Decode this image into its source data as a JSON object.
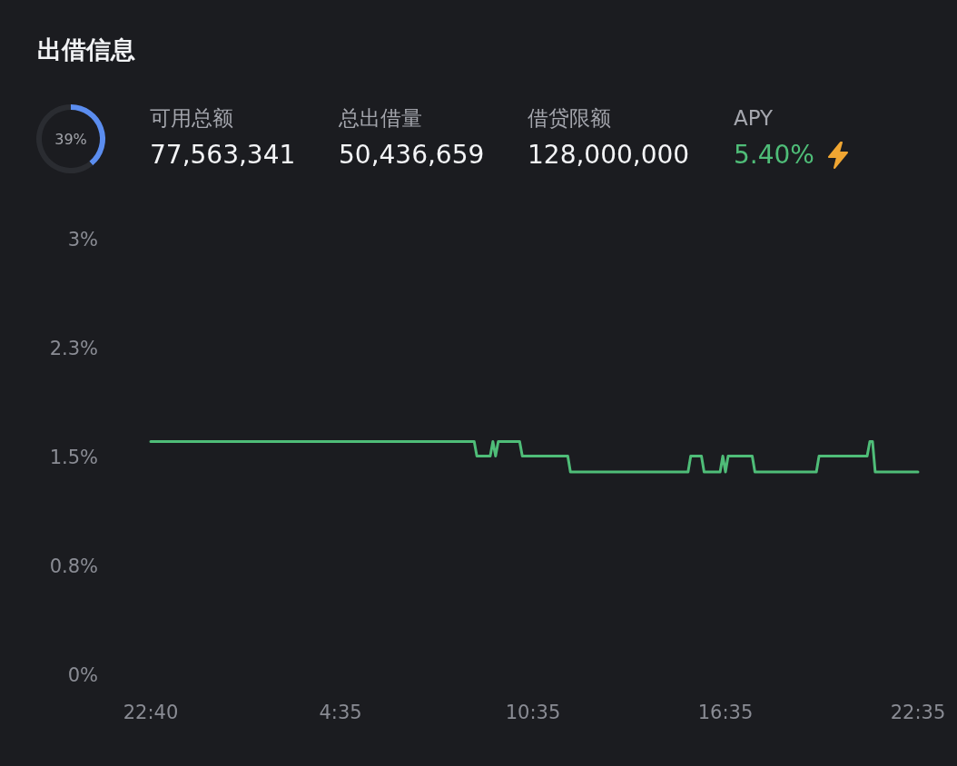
{
  "chart_data": [
    {
      "type": "donut",
      "title": "出借信息",
      "categories": [
        null,
        null
      ],
      "values": [
        39,
        61
      ],
      "colors": [
        "#5b8def",
        "#2a2c31"
      ],
      "value_labels": [
        "39%",
        null
      ]
    },
    {
      "type": "other",
      "annotations": [
        "可用总额",
        "77,563,341",
        "总出借量",
        "50,436,659",
        "借贷限额",
        "128,000,000",
        "APY",
        "5.40%"
      ]
    },
    {
      "type": "line",
      "categories": [
        "22:40",
        null,
        null,
        null,
        null,
        null,
        null,
        null,
        null,
        null,
        null,
        null,
        null,
        null,
        null,
        null,
        null,
        null,
        null,
        null,
        null,
        null,
        null,
        null,
        null,
        null,
        null,
        null,
        null,
        null,
        null,
        null,
        null,
        null,
        null,
        null,
        null,
        null,
        null,
        null,
        null,
        null,
        null,
        null,
        null,
        null,
        null,
        null,
        null,
        null,
        null,
        null,
        null,
        null,
        null,
        null,
        null,
        null,
        null,
        null,
        null,
        null,
        null,
        null,
        null,
        null,
        null,
        null,
        null,
        null,
        null,
        "4:35",
        null,
        null,
        null,
        null,
        null,
        null,
        null,
        null,
        null,
        null,
        null,
        null,
        null,
        null,
        null,
        null,
        null,
        null,
        null,
        null,
        null,
        null,
        null,
        null,
        null,
        null,
        null,
        null,
        null,
        null,
        null,
        null,
        null,
        null,
        null,
        null,
        null,
        null,
        null,
        null,
        null,
        null,
        null,
        null,
        null,
        null,
        null,
        null,
        null,
        null,
        null,
        null,
        null,
        null,
        null,
        null,
        null,
        null,
        null,
        null,
        null,
        null,
        null,
        null,
        null,
        null,
        null,
        null,
        null,
        null,
        null,
        "10:35",
        null,
        null,
        null,
        null,
        null,
        null,
        null,
        null,
        null,
        null,
        null,
        null,
        null,
        null,
        null,
        null,
        null,
        null,
        null,
        null,
        null,
        null,
        null,
        null,
        null,
        null,
        null,
        null,
        null,
        null,
        null,
        null,
        null,
        null,
        null,
        null,
        null,
        null,
        null,
        null,
        null,
        null,
        null,
        null,
        null,
        null,
        null,
        null,
        null,
        null,
        null,
        null,
        null,
        null,
        null,
        null,
        null,
        null,
        null,
        null,
        null,
        null,
        null,
        null,
        null,
        null,
        null,
        null,
        null,
        null,
        null,
        "16:35",
        null,
        null,
        null,
        null,
        null,
        null,
        null,
        null,
        null,
        null,
        null,
        null,
        null,
        null,
        null,
        null,
        null,
        null,
        null,
        null,
        null,
        null,
        null,
        null,
        null,
        null,
        null,
        null,
        null,
        null,
        null,
        null,
        null,
        null,
        null,
        null,
        null,
        null,
        null,
        null,
        null,
        null,
        null,
        null,
        null,
        null,
        null,
        null,
        null,
        null,
        null,
        null,
        null,
        null,
        null,
        null,
        null,
        null,
        null,
        null,
        null,
        null,
        null,
        null,
        null,
        null,
        null,
        null,
        null,
        null,
        null,
        "22:35"
      ],
      "values": [
        1.61,
        1.61,
        1.61,
        1.61,
        1.61,
        1.61,
        1.61,
        1.61,
        1.61,
        1.61,
        1.61,
        1.61,
        1.61,
        1.61,
        1.61,
        1.61,
        1.61,
        1.61,
        1.61,
        1.61,
        1.61,
        1.61,
        1.61,
        1.61,
        1.61,
        1.61,
        1.61,
        1.61,
        1.61,
        1.61,
        1.61,
        1.61,
        1.61,
        1.61,
        1.61,
        1.61,
        1.61,
        1.61,
        1.61,
        1.61,
        1.61,
        1.61,
        1.61,
        1.61,
        1.61,
        1.61,
        1.61,
        1.61,
        1.61,
        1.61,
        1.61,
        1.61,
        1.61,
        1.61,
        1.61,
        1.61,
        1.61,
        1.61,
        1.61,
        1.61,
        1.61,
        1.61,
        1.61,
        1.61,
        1.61,
        1.61,
        1.61,
        1.61,
        1.61,
        1.61,
        1.61,
        1.61,
        1.61,
        1.61,
        1.61,
        1.61,
        1.61,
        1.61,
        1.61,
        1.61,
        1.61,
        1.61,
        1.61,
        1.61,
        1.61,
        1.61,
        1.61,
        1.61,
        1.61,
        1.61,
        1.61,
        1.61,
        1.61,
        1.61,
        1.61,
        1.61,
        1.61,
        1.61,
        1.61,
        1.61,
        1.61,
        1.61,
        1.61,
        1.61,
        1.61,
        1.61,
        1.61,
        1.61,
        1.61,
        1.61,
        1.61,
        1.61,
        1.61,
        1.61,
        1.61,
        1.61,
        1.61,
        1.61,
        1.61,
        1.61,
        1.61,
        1.61,
        1.51,
        1.51,
        1.51,
        1.51,
        1.51,
        1.51,
        1.61,
        1.51,
        1.61,
        1.61,
        1.61,
        1.61,
        1.61,
        1.61,
        1.61,
        1.61,
        1.61,
        1.51,
        1.51,
        1.51,
        1.51,
        1.51,
        1.51,
        1.51,
        1.51,
        1.51,
        1.51,
        1.51,
        1.51,
        1.51,
        1.51,
        1.51,
        1.51,
        1.51,
        1.51,
        1.4,
        1.4,
        1.4,
        1.4,
        1.4,
        1.4,
        1.4,
        1.4,
        1.4,
        1.4,
        1.4,
        1.4,
        1.4,
        1.4,
        1.4,
        1.4,
        1.4,
        1.4,
        1.4,
        1.4,
        1.4,
        1.4,
        1.4,
        1.4,
        1.4,
        1.4,
        1.4,
        1.4,
        1.4,
        1.4,
        1.4,
        1.4,
        1.4,
        1.4,
        1.4,
        1.4,
        1.4,
        1.4,
        1.4,
        1.4,
        1.4,
        1.4,
        1.4,
        1.4,
        1.4,
        1.51,
        1.51,
        1.51,
        1.51,
        1.51,
        1.4,
        1.4,
        1.4,
        1.4,
        1.4,
        1.4,
        1.4,
        1.51,
        1.4,
        1.51,
        1.51,
        1.51,
        1.51,
        1.51,
        1.51,
        1.51,
        1.51,
        1.51,
        1.51,
        1.4,
        1.4,
        1.4,
        1.4,
        1.4,
        1.4,
        1.4,
        1.4,
        1.4,
        1.4,
        1.4,
        1.4,
        1.4,
        1.4,
        1.4,
        1.4,
        1.4,
        1.4,
        1.4,
        1.4,
        1.4,
        1.4,
        1.4,
        1.4,
        1.51,
        1.51,
        1.51,
        1.51,
        1.51,
        1.51,
        1.51,
        1.51,
        1.51,
        1.51,
        1.51,
        1.51,
        1.51,
        1.51,
        1.51,
        1.51,
        1.51,
        1.51,
        1.51,
        1.61,
        1.61,
        1.4,
        1.4,
        1.4,
        1.4,
        1.4,
        1.4,
        1.4,
        1.4,
        1.4,
        1.4,
        1.4,
        1.4,
        1.4,
        1.4,
        1.4,
        1.4,
        1.4
      ],
      "color": "#4fbd78",
      "marker": "none",
      "line_style": "solid",
      "ylim": [
        0,
        3
      ],
      "yticks": [
        {
          "value": 0,
          "label": "0%"
        },
        {
          "value": 0.75,
          "label": "0.8%"
        },
        {
          "value": 1.5,
          "label": "1.5%"
        },
        {
          "value": 2.25,
          "label": "2.3%"
        },
        {
          "value": 3,
          "label": "3%"
        }
      ]
    }
  ]
}
